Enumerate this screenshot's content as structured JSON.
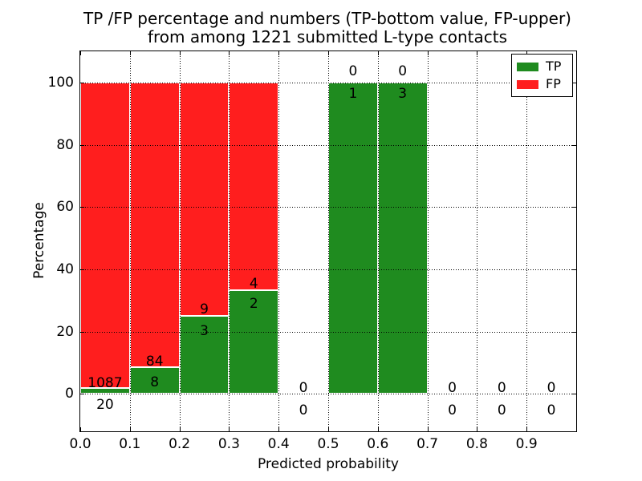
{
  "title": {
    "line1": "TP /FP percentage and numbers (TP-bottom value, FP-upper)",
    "line2": "from among 1221 submitted L-type contacts"
  },
  "chart_data": {
    "type": "bar",
    "stacked": true,
    "title": "TP /FP percentage and numbers (TP-bottom value, FP-upper)\nfrom among 1221 submitted L-type contacts",
    "xlabel": "Predicted probability",
    "ylabel": "Percentage",
    "xlim": [
      0.0,
      1.0
    ],
    "ylim": [
      -12,
      110
    ],
    "grid": "dotted",
    "xtick_labels": [
      "0.0",
      "0.1",
      "0.2",
      "0.3",
      "0.4",
      "0.5",
      "0.6",
      "0.7",
      "0.8",
      "0.9"
    ],
    "xtick_values": [
      0.0,
      0.1,
      0.2,
      0.3,
      0.4,
      0.5,
      0.6,
      0.7,
      0.8,
      0.9
    ],
    "ytick_values": [
      0,
      20,
      40,
      60,
      80,
      100
    ],
    "total_submitted": 1221,
    "colors": {
      "tp": "#1f8b1f",
      "fp": "#ff1e1e",
      "background": "#ffffff",
      "text": "#000000",
      "bar_edge": "#ffffff"
    },
    "legend": {
      "position": "upper right",
      "entries": [
        {
          "label": "TP",
          "color": "#1f8b1f"
        },
        {
          "label": "FP",
          "color": "#ff1e1e"
        }
      ]
    },
    "bins": [
      {
        "range": [
          0.0,
          0.1
        ],
        "tp_count": 20,
        "fp_count": 1087,
        "tp_pct": 1.81,
        "fp_pct": 98.19,
        "labels": {
          "fp": {
            "text": "1087",
            "y_pct": 3.4
          },
          "tp": {
            "text": "20",
            "y_pct": -3.4
          }
        }
      },
      {
        "range": [
          0.1,
          0.2
        ],
        "tp_count": 8,
        "fp_count": 84,
        "tp_pct": 8.7,
        "fp_pct": 91.3,
        "labels": {
          "fp": {
            "text": "84",
            "y_pct": 10.4
          },
          "tp": {
            "text": "8",
            "y_pct": 3.6
          }
        }
      },
      {
        "range": [
          0.2,
          0.3
        ],
        "tp_count": 3,
        "fp_count": 9,
        "tp_pct": 25.0,
        "fp_pct": 75.0,
        "labels": {
          "fp": {
            "text": "9",
            "y_pct": 27.2
          },
          "tp": {
            "text": "3",
            "y_pct": 20.3
          }
        }
      },
      {
        "range": [
          0.3,
          0.4
        ],
        "tp_count": 2,
        "fp_count": 4,
        "tp_pct": 33.33,
        "fp_pct": 66.67,
        "labels": {
          "fp": {
            "text": "4",
            "y_pct": 35.4
          },
          "tp": {
            "text": "2",
            "y_pct": 29.0
          }
        }
      },
      {
        "range": [
          0.4,
          0.5
        ],
        "tp_count": 0,
        "fp_count": 0,
        "tp_pct": 0,
        "fp_pct": 0,
        "labels": {
          "fp": {
            "text": "0",
            "y_pct": 1.9
          },
          "tp": {
            "text": "0",
            "y_pct": -5.2
          }
        }
      },
      {
        "range": [
          0.5,
          0.6
        ],
        "tp_count": 1,
        "fp_count": 0,
        "tp_pct": 100,
        "fp_pct": 0,
        "labels": {
          "fp": {
            "text": "0",
            "y_pct": 103.6
          },
          "tp": {
            "text": "1",
            "y_pct": 96.4
          }
        }
      },
      {
        "range": [
          0.6,
          0.7
        ],
        "tp_count": 3,
        "fp_count": 0,
        "tp_pct": 100,
        "fp_pct": 0,
        "labels": {
          "fp": {
            "text": "0",
            "y_pct": 103.6
          },
          "tp": {
            "text": "3",
            "y_pct": 96.4
          }
        }
      },
      {
        "range": [
          0.7,
          0.8
        ],
        "tp_count": 0,
        "fp_count": 0,
        "tp_pct": 0,
        "fp_pct": 0,
        "labels": {
          "fp": {
            "text": "0",
            "y_pct": 1.9
          },
          "tp": {
            "text": "0",
            "y_pct": -5.2
          }
        }
      },
      {
        "range": [
          0.8,
          0.9
        ],
        "tp_count": 0,
        "fp_count": 0,
        "tp_pct": 0,
        "fp_pct": 0,
        "labels": {
          "fp": {
            "text": "0",
            "y_pct": 1.9
          },
          "tp": {
            "text": "0",
            "y_pct": -5.2
          }
        }
      },
      {
        "range": [
          0.9,
          1.0
        ],
        "tp_count": 0,
        "fp_count": 0,
        "tp_pct": 0,
        "fp_pct": 0,
        "labels": {
          "fp": {
            "text": "0",
            "y_pct": 1.9
          },
          "tp": {
            "text": "0",
            "y_pct": -5.2
          }
        }
      }
    ]
  }
}
